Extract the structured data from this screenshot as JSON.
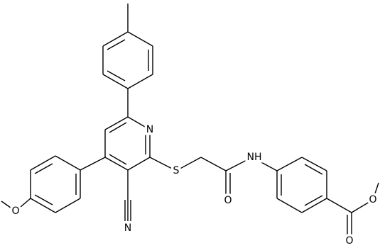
{
  "atoms": [
    "N",
    "S",
    "N",
    "NH",
    "O",
    "O",
    "O",
    "O"
  ]
}
